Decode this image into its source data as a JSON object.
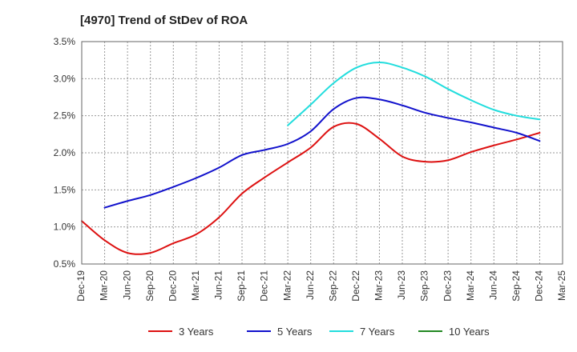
{
  "chart_data": {
    "type": "line",
    "title": "[4970]  Trend of StDev of ROA",
    "xlabel": "",
    "ylabel": "",
    "x_ticks": [
      "Dec-19",
      "Mar-20",
      "Jun-20",
      "Sep-20",
      "Dec-20",
      "Mar-21",
      "Jun-21",
      "Sep-21",
      "Dec-21",
      "Mar-22",
      "Jun-22",
      "Sep-22",
      "Dec-22",
      "Mar-23",
      "Jun-23",
      "Sep-23",
      "Dec-23",
      "Mar-24",
      "Jun-24",
      "Sep-24",
      "Dec-24",
      "Mar-25"
    ],
    "y_ticks": [
      "0.5%",
      "1.0%",
      "1.5%",
      "2.0%",
      "2.5%",
      "3.0%",
      "3.5%"
    ],
    "ylim": [
      0.5,
      3.5
    ],
    "grid": true,
    "legend_position": "bottom",
    "series": [
      {
        "name": "3 Years",
        "color": "#dd1111",
        "values": [
          1.08,
          0.82,
          0.65,
          0.65,
          0.78,
          0.9,
          1.13,
          1.45,
          1.67,
          1.87,
          2.07,
          2.35,
          2.39,
          2.19,
          1.95,
          1.88,
          1.9,
          2.01,
          2.1,
          2.18,
          2.27
        ]
      },
      {
        "name": "5 Years",
        "color": "#1111cc",
        "values": [
          null,
          1.26,
          1.35,
          1.43,
          1.54,
          1.66,
          1.8,
          1.97,
          2.04,
          2.12,
          2.29,
          2.59,
          2.74,
          2.72,
          2.64,
          2.54,
          2.47,
          2.41,
          2.34,
          2.27,
          2.16
        ]
      },
      {
        "name": "7 Years",
        "color": "#22dddd",
        "values": [
          null,
          null,
          null,
          null,
          null,
          null,
          null,
          null,
          null,
          2.37,
          2.65,
          2.94,
          3.15,
          3.22,
          3.15,
          3.03,
          2.86,
          2.71,
          2.58,
          2.5,
          2.45
        ]
      },
      {
        "name": "10 Years",
        "color": "#228822",
        "values": [
          null,
          null,
          null,
          null,
          null,
          null,
          null,
          null,
          null,
          null,
          null,
          null,
          null,
          null,
          null,
          null,
          null,
          null,
          null,
          null,
          null
        ]
      }
    ]
  }
}
